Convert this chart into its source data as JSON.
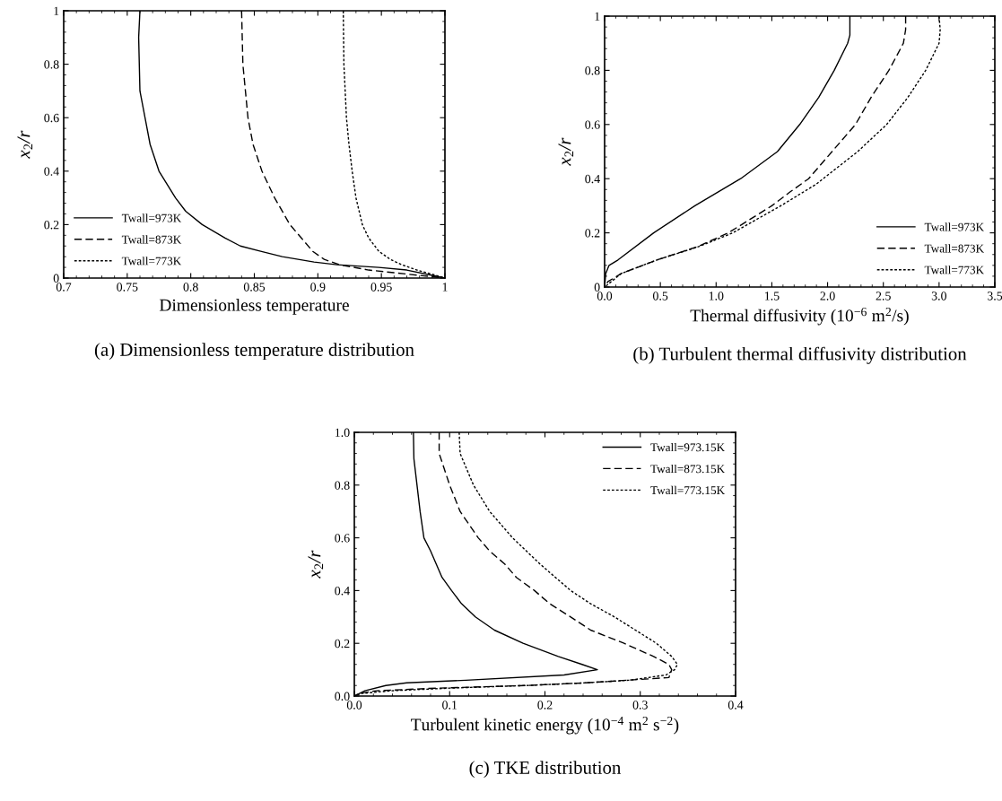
{
  "chart_data": [
    {
      "type": "line",
      "title": "(a) Dimensionless temperature distribution",
      "xlabel": "Dimensionless temperature",
      "ylabel": "x$_{2}$/r",
      "xlim": [
        0.7,
        1
      ],
      "ylim": [
        0,
        1
      ],
      "xticks": [
        0.7,
        0.75,
        0.8,
        0.85,
        0.9,
        0.95,
        1
      ],
      "yticks": [
        0,
        0.2,
        0.4,
        0.6,
        0.8,
        1
      ],
      "legend": "lower left",
      "grid": false,
      "series": [
        {
          "name": "Twall=973K",
          "color": "#000000",
          "line_style": "solid",
          "x": [
            0.76,
            0.759,
            0.76,
            0.764,
            0.768,
            0.775,
            0.788,
            0.796,
            0.809,
            0.827,
            0.839,
            0.855,
            0.872,
            0.897,
            0.915,
            0.948,
            0.97,
            0.99,
            1
          ],
          "values": [
            1,
            0.9,
            0.7,
            0.6,
            0.5,
            0.4,
            0.3,
            0.25,
            0.2,
            0.15,
            0.12,
            0.1,
            0.08,
            0.06,
            0.05,
            0.04,
            0.03,
            0.01,
            0
          ]
        },
        {
          "name": "Twall=873K",
          "color": "#000000",
          "line_style": "dashed",
          "x": [
            0.84,
            0.841,
            0.843,
            0.845,
            0.849,
            0.856,
            0.866,
            0.878,
            0.887,
            0.896,
            0.905,
            0.917,
            0.94,
            0.96,
            0.98,
            1
          ],
          "values": [
            1,
            0.8,
            0.7,
            0.6,
            0.5,
            0.4,
            0.3,
            0.2,
            0.15,
            0.1,
            0.07,
            0.05,
            0.03,
            0.02,
            0.01,
            0
          ]
        },
        {
          "name": "Twall=773K",
          "color": "#000000",
          "line_style": "dotted",
          "x": [
            0.92,
            0.9205,
            0.9225,
            0.9245,
            0.927,
            0.93,
            0.935,
            0.94,
            0.948,
            0.957,
            0.966,
            0.978,
            0.993,
            1
          ],
          "values": [
            1,
            0.8,
            0.6,
            0.5,
            0.4,
            0.3,
            0.2,
            0.15,
            0.1,
            0.07,
            0.05,
            0.03,
            0.01,
            0
          ]
        }
      ]
    },
    {
      "type": "line",
      "title": "(b) Turbulent thermal diffusivity distribution",
      "xlabel": "Thermal diffusivity (10$^{−6}$ m$^{2}$/s)",
      "ylabel": "x$_{2}$/r",
      "xlim": [
        0,
        3.5
      ],
      "ylim": [
        0,
        1
      ],
      "xticks": [
        {
          "value": 0,
          "label": "0.0"
        },
        0.5,
        {
          "value": 1,
          "label": "1.0"
        },
        1.5,
        {
          "value": 2,
          "label": "2.0"
        },
        2.5,
        {
          "value": 3,
          "label": "3.0"
        },
        3.5
      ],
      "yticks": [
        0,
        0.2,
        0.4,
        0.6,
        0.8,
        1
      ],
      "legend": "lower right",
      "grid": false,
      "series": [
        {
          "name": "Twall=973K",
          "color": "#000000",
          "line_style": "solid",
          "x": [
            2.2,
            2.2,
            2.18,
            2.06,
            1.92,
            1.75,
            1.55,
            1.22,
            0.81,
            0.44,
            0.12,
            0.04,
            0.01,
            0
          ],
          "values": [
            1,
            0.93,
            0.9,
            0.8,
            0.7,
            0.6,
            0.5,
            0.4,
            0.3,
            0.2,
            0.1,
            0.08,
            0.05,
            0
          ]
        },
        {
          "name": "Twall=873K",
          "color": "#000000",
          "line_style": "dashed",
          "x": [
            2.7,
            2.7,
            2.68,
            2.55,
            2.39,
            2.25,
            2.04,
            1.83,
            1.66,
            1.5,
            1.11,
            0.84,
            0.47,
            0.15,
            0.03,
            0
          ],
          "values": [
            1,
            0.95,
            0.9,
            0.8,
            0.7,
            0.6,
            0.5,
            0.4,
            0.35,
            0.3,
            0.2,
            0.15,
            0.1,
            0.05,
            0.02,
            0
          ]
        },
        {
          "name": "Twall=773K",
          "color": "#000000",
          "line_style": "dotted",
          "x": [
            3.0,
            3.01,
            3.0,
            2.88,
            2.72,
            2.53,
            2.27,
            1.96,
            1.9,
            1.58,
            1.15,
            0.85,
            0.47,
            0.15,
            0
          ],
          "values": [
            1,
            0.95,
            0.9,
            0.8,
            0.7,
            0.6,
            0.5,
            0.4,
            0.38,
            0.3,
            0.2,
            0.15,
            0.1,
            0.05,
            0
          ]
        }
      ]
    },
    {
      "type": "line",
      "title": "(c) TKE distribution",
      "xlabel": "Turbulent kinetic energy (10$^{−4}$ m$^{2}$ s$^{−2}$)",
      "ylabel": "x$_{2}$/r",
      "xlim": [
        0,
        0.4
      ],
      "ylim": [
        0,
        1
      ],
      "xticks": [
        {
          "value": 0,
          "label": "0.0"
        },
        0.1,
        0.2,
        0.3,
        0.4
      ],
      "yticks": [
        {
          "value": 0,
          "label": "0.0"
        },
        0.2,
        0.4,
        0.6,
        0.8,
        {
          "value": 1,
          "label": "1.0"
        }
      ],
      "legend": "upper right",
      "grid": false,
      "series": [
        {
          "name": "Twall=973.15K",
          "color": "#000000",
          "line_style": "solid",
          "x": [
            0.062,
            0.0625,
            0.069,
            0.073,
            0.08,
            0.086,
            0.092,
            0.102,
            0.1125,
            0.127,
            0.147,
            0.177,
            0.214,
            0.239,
            0.255,
            0.22,
            0.117,
            0.055,
            0.033,
            0.011,
            0
          ],
          "values": [
            1,
            0.9,
            0.7,
            0.6,
            0.55,
            0.5,
            0.45,
            0.4,
            0.35,
            0.3,
            0.25,
            0.2,
            0.15,
            0.12,
            0.1,
            0.08,
            0.06,
            0.05,
            0.04,
            0.02,
            0
          ]
        },
        {
          "name": "Twall=873.15K",
          "color": "#000000",
          "line_style": "dashed",
          "x": [
            0.089,
            0.089,
            0.1,
            0.111,
            0.13,
            0.142,
            0.158,
            0.17,
            0.189,
            0.205,
            0.227,
            0.248,
            0.283,
            0.314,
            0.33,
            0.333,
            0.33,
            0.242,
            0.18,
            0.086,
            0.023,
            0.005,
            0
          ],
          "values": [
            1,
            0.92,
            0.8,
            0.7,
            0.6,
            0.55,
            0.5,
            0.45,
            0.4,
            0.35,
            0.3,
            0.25,
            0.2,
            0.15,
            0.12,
            0.1,
            0.07,
            0.05,
            0.04,
            0.03,
            0.02,
            0.01,
            0
          ]
        },
        {
          "name": "Twall=773.15K",
          "color": "#000000",
          "line_style": "dotted",
          "x": [
            0.11,
            0.111,
            0.125,
            0.142,
            0.166,
            0.195,
            0.211,
            0.227,
            0.248,
            0.273,
            0.295,
            0.317,
            0.333,
            0.339,
            0.336,
            0.327,
            0.289,
            0.242,
            0.18,
            0.1,
            0.039,
            0.008,
            0
          ],
          "values": [
            1,
            0.92,
            0.8,
            0.7,
            0.6,
            0.5,
            0.45,
            0.4,
            0.35,
            0.3,
            0.25,
            0.2,
            0.15,
            0.12,
            0.1,
            0.08,
            0.06,
            0.05,
            0.04,
            0.03,
            0.02,
            0.01,
            0
          ]
        }
      ]
    }
  ]
}
